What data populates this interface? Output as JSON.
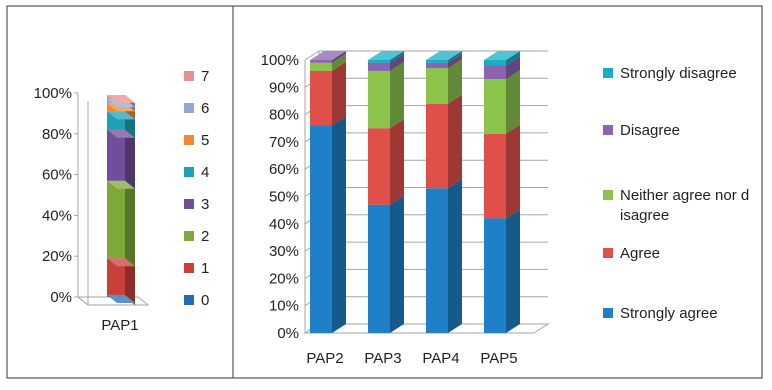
{
  "chart_data": [
    {
      "type": "bar",
      "stacked": true,
      "percent_stacked": true,
      "three_d": true,
      "categories": [
        "PAP1"
      ],
      "series": [
        {
          "name": "0",
          "values": [
            1
          ],
          "color": "#1F6FB2"
        },
        {
          "name": "1",
          "values": [
            18
          ],
          "color": "#C8403A"
        },
        {
          "name": "2",
          "values": [
            38
          ],
          "color": "#7EA83A"
        },
        {
          "name": "3",
          "values": [
            25
          ],
          "color": "#6F4E9A"
        },
        {
          "name": "4",
          "values": [
            9
          ],
          "color": "#1FA2B8"
        },
        {
          "name": "5",
          "values": [
            4
          ],
          "color": "#F1892D"
        },
        {
          "name": "6",
          "values": [
            2
          ],
          "color": "#8EA9D3"
        },
        {
          "name": "7",
          "values": [
            2
          ],
          "color": "#E68F8E"
        }
      ],
      "y_ticks": [
        "0%",
        "20%",
        "40%",
        "60%",
        "80%",
        "100%"
      ],
      "ylim": [
        0,
        100
      ],
      "legend_position": "right",
      "grid": false
    },
    {
      "type": "bar",
      "stacked": true,
      "percent_stacked": true,
      "three_d": true,
      "categories": [
        "PAP2",
        "PAP3",
        "PAP4",
        "PAP5"
      ],
      "series": [
        {
          "name": "Strongly agree",
          "values": [
            76,
            47,
            53,
            42
          ],
          "color": "#1F80C8"
        },
        {
          "name": "Agree",
          "values": [
            20,
            28,
            31,
            31
          ],
          "color": "#E0504B"
        },
        {
          "name": "Neither agree nor disagree",
          "values": [
            3,
            21,
            13,
            20
          ],
          "color": "#8CC34B"
        },
        {
          "name": "Disagree",
          "values": [
            1,
            3,
            2,
            5
          ],
          "color": "#8A64AE"
        },
        {
          "name": "Strongly disagree",
          "values": [
            0,
            1,
            1,
            2
          ],
          "color": "#18AFC6"
        }
      ],
      "y_ticks": [
        "0%",
        "10%",
        "20%",
        "30%",
        "40%",
        "50%",
        "60%",
        "70%",
        "80%",
        "90%",
        "100%"
      ],
      "ylim": [
        0,
        100
      ],
      "legend_position": "right",
      "grid": true
    }
  ]
}
